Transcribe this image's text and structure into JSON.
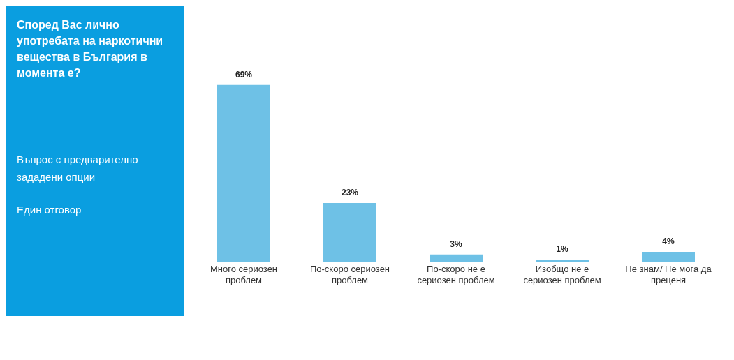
{
  "chart_data": {
    "type": "bar",
    "title": "Според Вас лично употребата на наркотични вещества в България в момента е?",
    "annotations": [
      "Въпрос с предварително зададени опции",
      "Един отговор"
    ],
    "categories": [
      "Много сериозен проблем",
      "По-скоро сериозен проблем",
      "По-скоро не е сериозен проблем",
      "Изобщо не е сериозен проблем",
      "Не знам/ Не мога да преценя"
    ],
    "values": [
      69,
      23,
      3,
      1,
      4
    ],
    "value_labels": [
      "69%",
      "23%",
      "3%",
      "1%",
      "4%"
    ],
    "color": "#6ec1e6",
    "grid": false,
    "legend": false
  }
}
